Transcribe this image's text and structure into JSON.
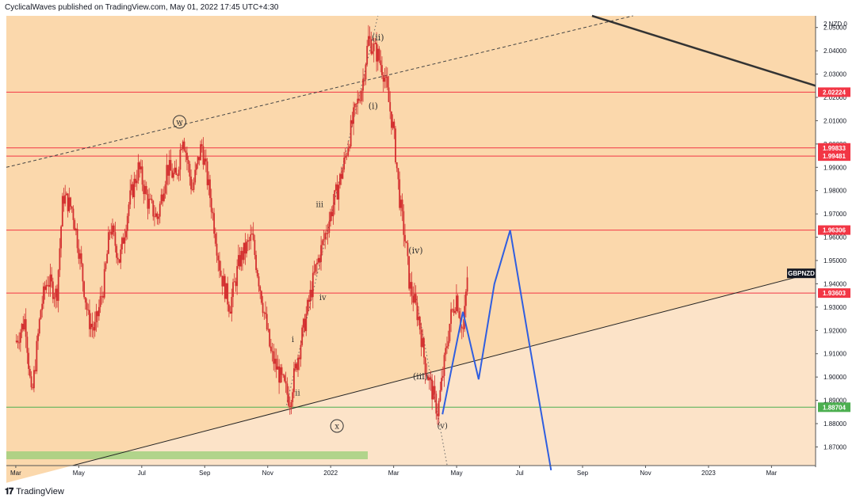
{
  "header": {
    "text": "CyclicalWaves published on TradingView.com, May 01, 2022 17:45 UTC+4:30"
  },
  "footer": {
    "logo_text": "TradingView"
  },
  "chart_data": {
    "type": "candlestick",
    "symbol_label": "GBPNZD",
    "currency_label": "NZD",
    "currency_prefix": "2",
    "currency_suffix": "0",
    "ylim": [
      1.862,
      2.055
    ],
    "y_ticks": [
      1.87,
      1.88,
      1.89,
      1.9,
      1.91,
      1.92,
      1.93,
      1.94,
      1.95,
      1.96,
      1.97,
      1.98,
      1.99,
      2.0,
      2.01,
      2.02,
      2.03,
      2.04,
      2.05
    ],
    "y_tick_labels": [
      "1.87000",
      "1.88000",
      "1.89000",
      "1.90000",
      "1.91000",
      "1.92000",
      "1.93000",
      "1.94000",
      "1.95000",
      "1.96000",
      "1.97000",
      "1.98000",
      "1.99000",
      "2.00000",
      "2.01000",
      "2.02000",
      "2.03000",
      "2.04000",
      "2.05000"
    ],
    "x_ticks": [
      {
        "label": "Mar",
        "t": 0
      },
      {
        "label": "May",
        "t": 2
      },
      {
        "label": "Jul",
        "t": 4
      },
      {
        "label": "Sep",
        "t": 6
      },
      {
        "label": "Nov",
        "t": 8
      },
      {
        "label": "2022",
        "t": 10
      },
      {
        "label": "Mar",
        "t": 12
      },
      {
        "label": "May",
        "t": 14
      },
      {
        "label": "Jul",
        "t": 16
      },
      {
        "label": "Sep",
        "t": 18
      },
      {
        "label": "Nov",
        "t": 20
      },
      {
        "label": "2023",
        "t": 22
      },
      {
        "label": "Mar",
        "t": 24
      }
    ],
    "xlim": [
      -0.3,
      25.4
    ],
    "horizontal_levels": [
      {
        "value": 2.02224,
        "label": "2.02224",
        "color": "#f23645"
      },
      {
        "value": 1.99833,
        "label": "1.99833",
        "color": "#f23645"
      },
      {
        "value": 1.99481,
        "label": "1.99481",
        "color": "#f23645"
      },
      {
        "value": 1.96306,
        "label": "1.96306",
        "color": "#f23645"
      },
      {
        "value": 1.93603,
        "label": "1.93603",
        "color": "#f23645"
      },
      {
        "value": 1.88704,
        "label": "1.88704",
        "color": "#4caf50"
      }
    ],
    "close_price": {
      "value": 1.9445,
      "label": "GBPNZD"
    },
    "price_path": [
      [
        0.0,
        1.915
      ],
      [
        0.3,
        1.925
      ],
      [
        0.5,
        1.89
      ],
      [
        0.8,
        1.93
      ],
      [
        1.0,
        1.942
      ],
      [
        1.3,
        1.935
      ],
      [
        1.5,
        1.978
      ],
      [
        1.8,
        1.972
      ],
      [
        2.0,
        1.955
      ],
      [
        2.3,
        1.925
      ],
      [
        2.5,
        1.92
      ],
      [
        2.8,
        1.94
      ],
      [
        3.0,
        1.965
      ],
      [
        3.3,
        1.95
      ],
      [
        3.6,
        1.975
      ],
      [
        3.9,
        1.99
      ],
      [
        4.2,
        1.975
      ],
      [
        4.5,
        1.968
      ],
      [
        4.8,
        1.99
      ],
      [
        5.1,
        1.985
      ],
      [
        5.3,
        2.005
      ],
      [
        5.6,
        1.98
      ],
      [
        5.9,
        2.0
      ],
      [
        6.2,
        1.975
      ],
      [
        6.5,
        1.945
      ],
      [
        6.8,
        1.93
      ],
      [
        7.1,
        1.95
      ],
      [
        7.5,
        1.96
      ],
      [
        7.8,
        1.935
      ],
      [
        8.1,
        1.91
      ],
      [
        8.4,
        1.9
      ],
      [
        8.7,
        1.89
      ],
      [
        8.9,
        1.905
      ],
      [
        9.2,
        1.925
      ],
      [
        9.5,
        1.945
      ],
      [
        9.8,
        1.96
      ],
      [
        10.1,
        1.975
      ],
      [
        10.4,
        1.99
      ],
      [
        10.7,
        2.01
      ],
      [
        11.0,
        2.025
      ],
      [
        11.2,
        2.045
      ],
      [
        11.5,
        2.038
      ],
      [
        11.7,
        2.03
      ],
      [
        12.0,
        2.005
      ],
      [
        12.2,
        1.975
      ],
      [
        12.4,
        1.955
      ],
      [
        12.5,
        1.94
      ],
      [
        12.8,
        1.925
      ],
      [
        13.0,
        1.905
      ],
      [
        13.2,
        1.895
      ],
      [
        13.4,
        1.885
      ],
      [
        13.6,
        1.905
      ],
      [
        13.8,
        1.925
      ],
      [
        14.0,
        1.935
      ],
      [
        14.2,
        1.918
      ],
      [
        14.35,
        1.945
      ]
    ],
    "projection_path": [
      [
        13.55,
        1.884
      ],
      [
        14.2,
        1.928
      ],
      [
        14.7,
        1.899
      ],
      [
        15.2,
        1.94
      ],
      [
        15.7,
        1.963
      ],
      [
        16.3,
        1.915
      ],
      [
        17.0,
        1.86
      ]
    ],
    "channel_lines": [
      {
        "style": "dashed",
        "color": "#444",
        "from": [
          -0.3,
          1.99
        ],
        "to": [
          19.6,
          2.055
        ]
      },
      {
        "style": "solid",
        "color": "#222",
        "from": [
          1.8,
          1.862
        ],
        "to": [
          25.4,
          1.945
        ]
      },
      {
        "style": "solid",
        "color": "#333",
        "thick": true,
        "from": [
          18.3,
          2.055
        ],
        "to": [
          25.4,
          2.025
        ]
      }
    ],
    "dotted_lines": [
      {
        "from": [
          8.6,
          1.888
        ],
        "to": [
          11.5,
          2.055
        ]
      },
      {
        "from": [
          12.7,
          1.935
        ],
        "to": [
          13.7,
          1.862
        ]
      }
    ],
    "wave_labels": [
      {
        "text": "(ii)",
        "t": 11.5,
        "v": 2.0445,
        "size": 11
      },
      {
        "text": "(i)",
        "t": 11.35,
        "v": 2.015,
        "size": 11
      },
      {
        "text": "(iv)",
        "t": 12.7,
        "v": 1.953,
        "size": 11
      },
      {
        "text": "(iii)",
        "t": 12.85,
        "v": 1.899,
        "size": 11
      },
      {
        "text": "(v)",
        "t": 13.55,
        "v": 1.878,
        "size": 10
      },
      {
        "text": "iii",
        "t": 9.65,
        "v": 1.973,
        "size": 10
      },
      {
        "text": "iv",
        "t": 9.75,
        "v": 1.933,
        "size": 10
      },
      {
        "text": "i",
        "t": 8.8,
        "v": 1.915,
        "size": 10
      },
      {
        "text": "ii",
        "t": 8.95,
        "v": 1.892,
        "size": 10
      }
    ],
    "circled_labels": [
      {
        "text": "w",
        "t": 5.2,
        "v": 2.0095
      },
      {
        "text": "x",
        "t": 10.2,
        "v": 1.879
      }
    ],
    "colors": {
      "background_upper": "#fbd8ac",
      "background_lower": "#fce3c8",
      "candle": "#d32f2f",
      "green_zone": "#9ed07c",
      "projection": "#2f5ee0"
    }
  }
}
